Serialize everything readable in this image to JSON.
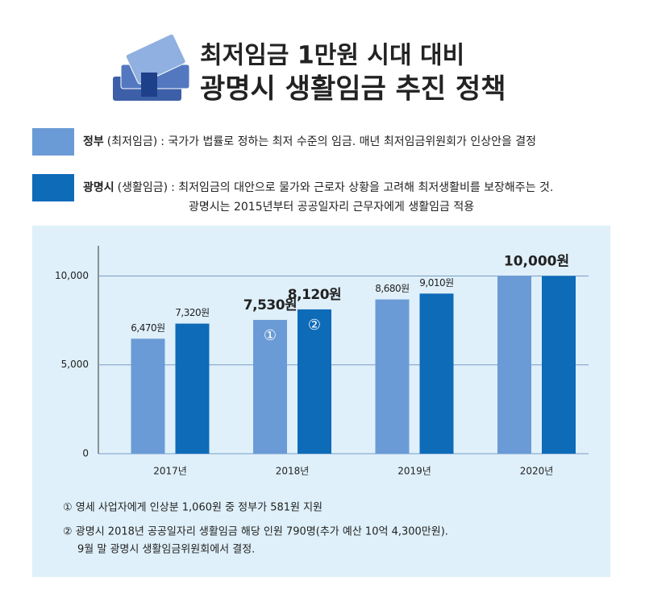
{
  "header": {
    "title_line1": "최저임금 1만원 시대 대비",
    "title_line2": "광명시 생활임금 추진 정책"
  },
  "chart_data": {
    "type": "bar",
    "categories": [
      "2017년",
      "2018년",
      "2019년",
      "2020년"
    ],
    "series": [
      {
        "name": "정부",
        "subname": "(최저임금)",
        "description": [
          ": 국가가 법률로 정하는 최저 수준의 임금. 매년 최저임금위원회가 인상안을 결정"
        ],
        "color": "#6a9bd6",
        "values": [
          6470,
          7530,
          8680,
          10000
        ],
        "value_labels": [
          "6,470원",
          "7,530원",
          "8,680원",
          null
        ],
        "markers": [
          null,
          "①",
          null,
          null
        ]
      },
      {
        "name": "광명시",
        "subname": "(생활임금)",
        "description": [
          ": 최저임금의 대안으로 물가와 근로자 상황을 고려해 최저생활비를 보장해주는 것.",
          "광명시는 2015년부터 공공일자리 근무자에게 생활임금 적용"
        ],
        "color": "#0e6bb8",
        "values": [
          7320,
          8120,
          9010,
          10000
        ],
        "value_labels": [
          "7,320원",
          "8,120원",
          "9,010원",
          null
        ],
        "markers": [
          null,
          "②",
          null,
          null
        ]
      }
    ],
    "group_labels": [
      null,
      null,
      null,
      "10,000원"
    ],
    "ylim": [
      0,
      11700
    ],
    "yticks": [
      0,
      {
        "value": 5000,
        "label": "5,000"
      },
      {
        "value": 10000,
        "label": "10,000"
      }
    ],
    "grid": true
  },
  "footnotes": [
    [
      "① 영세 사업자에게 인상분 1,060원 중 정부가 581원 지원"
    ],
    [
      "② 광명시 2018년 공공일자리 생활임금 해당 인원 790명(추가 예산 10억 4,300만원).",
      "9월 말 광명시 생활임금위원회에서 결정."
    ]
  ]
}
